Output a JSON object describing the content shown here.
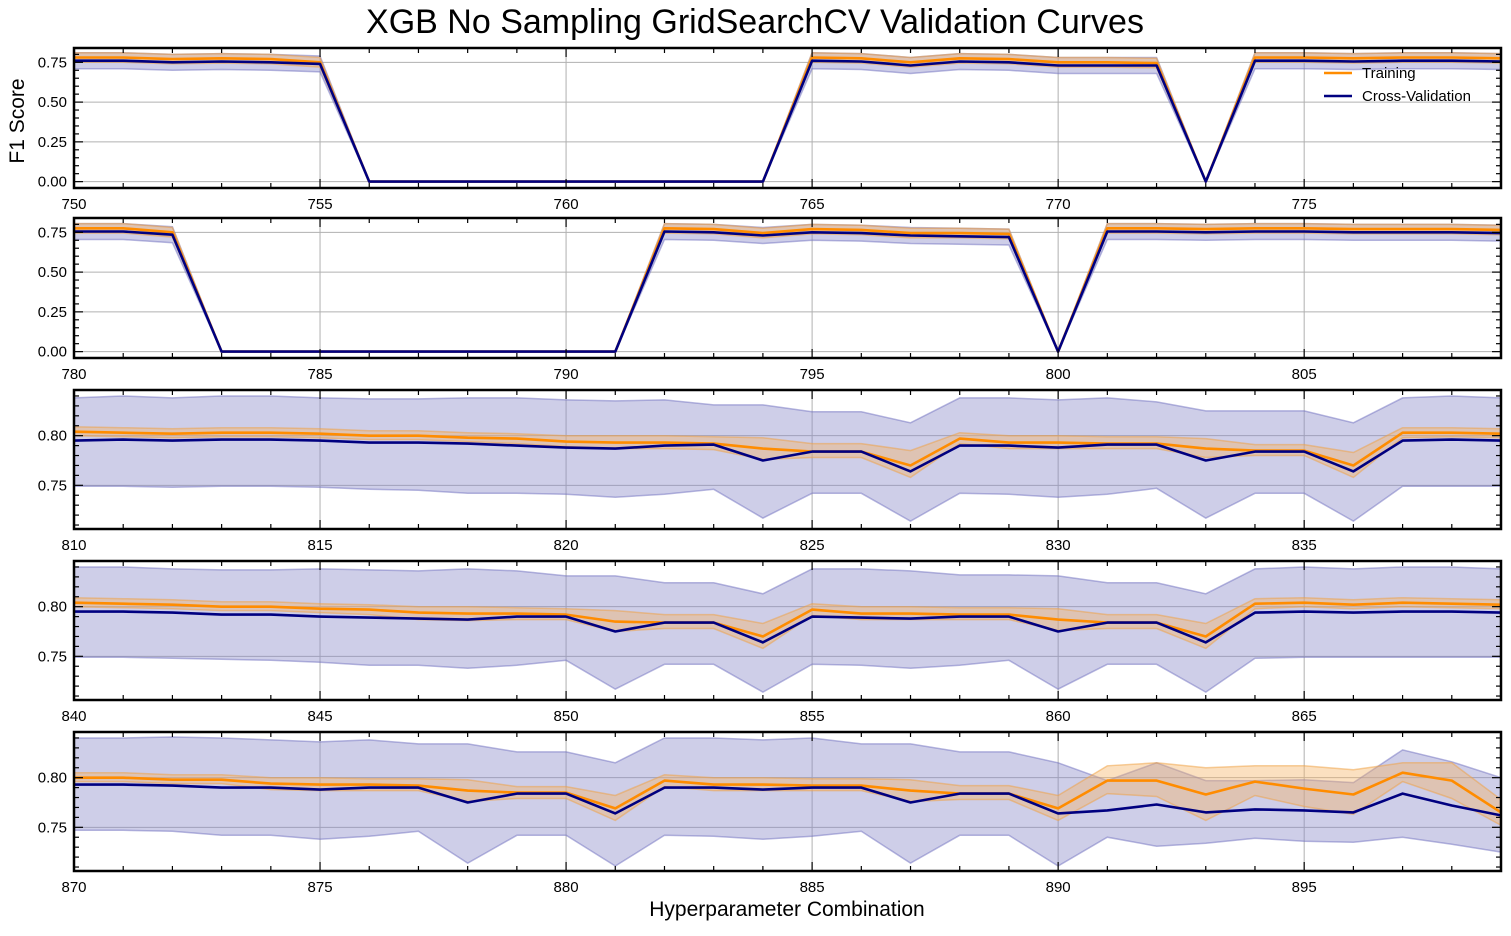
{
  "figure": {
    "title": "XGB No Sampling GridSearchCV Validation Curves",
    "xlabel": "Hyperparameter Combination",
    "ylabel": "F1 Score",
    "legend": {
      "placement": "top-right",
      "entries": [
        "Training",
        "Cross-Validation"
      ]
    },
    "colors": {
      "training": "#ff8c00",
      "cross_validation": "#000080",
      "cv_band": "#8a8ac8",
      "train_band": "#f5b46a",
      "grid": "#b0b0b0"
    }
  },
  "chart_data": [
    {
      "type": "line",
      "title": "",
      "xlabel": "",
      "ylabel": "F1 Score",
      "xlim": [
        750,
        779
      ],
      "ylim": [
        -0.04,
        0.84
      ],
      "xticks": [
        750,
        755,
        760,
        765,
        770,
        775
      ],
      "yticks": [
        0.0,
        0.25,
        0.5,
        0.75
      ],
      "ytick_labels": [
        "0.00",
        "0.25",
        "0.50",
        "0.75"
      ],
      "grid": true,
      "legend": "top-right",
      "x": [
        750,
        751,
        752,
        753,
        754,
        755,
        756,
        757,
        758,
        759,
        760,
        761,
        762,
        763,
        764,
        765,
        766,
        767,
        768,
        769,
        770,
        771,
        772,
        773,
        774,
        775,
        776,
        777,
        778,
        779
      ],
      "series": [
        {
          "name": "Training",
          "values": [
            0.78,
            0.78,
            0.77,
            0.775,
            0.77,
            0.75,
            0,
            0,
            0,
            0,
            0,
            0,
            0,
            0,
            0,
            0.78,
            0.775,
            0.75,
            0.775,
            0.77,
            0.75,
            0.75,
            0.745,
            0,
            0.78,
            0.78,
            0.775,
            0.78,
            0.78,
            0.775
          ],
          "band": 0.03
        },
        {
          "name": "Cross-Validation",
          "values": [
            0.76,
            0.76,
            0.75,
            0.755,
            0.75,
            0.74,
            0,
            0,
            0,
            0,
            0,
            0,
            0,
            0,
            0,
            0.76,
            0.755,
            0.73,
            0.755,
            0.75,
            0.73,
            0.73,
            0.73,
            0,
            0.76,
            0.76,
            0.755,
            0.76,
            0.76,
            0.755
          ],
          "band": 0.05
        }
      ]
    },
    {
      "type": "line",
      "title": "",
      "xlabel": "",
      "ylabel": "",
      "xlim": [
        780,
        809
      ],
      "ylim": [
        -0.04,
        0.84
      ],
      "xticks": [
        780,
        785,
        790,
        795,
        800,
        805
      ],
      "yticks": [
        0.0,
        0.25,
        0.5,
        0.75
      ],
      "ytick_labels": [
        "0.00",
        "0.25",
        "0.50",
        "0.75"
      ],
      "grid": true,
      "x": [
        780,
        781,
        782,
        783,
        784,
        785,
        786,
        787,
        788,
        789,
        790,
        791,
        792,
        793,
        794,
        795,
        796,
        797,
        798,
        799,
        800,
        801,
        802,
        803,
        804,
        805,
        806,
        807,
        808,
        809
      ],
      "series": [
        {
          "name": "Training",
          "values": [
            0.775,
            0.775,
            0.75,
            0,
            0,
            0,
            0,
            0,
            0,
            0,
            0,
            0,
            0.775,
            0.77,
            0.745,
            0.77,
            0.765,
            0.745,
            0.745,
            0.74,
            0,
            0.775,
            0.775,
            0.77,
            0.775,
            0.775,
            0.77,
            0.77,
            0.77,
            0.765
          ],
          "band": 0.03
        },
        {
          "name": "Cross-Validation",
          "values": [
            0.755,
            0.755,
            0.735,
            0,
            0,
            0,
            0,
            0,
            0,
            0,
            0,
            0,
            0.755,
            0.75,
            0.73,
            0.75,
            0.745,
            0.73,
            0.725,
            0.72,
            0,
            0.755,
            0.755,
            0.75,
            0.755,
            0.755,
            0.75,
            0.75,
            0.75,
            0.745
          ],
          "band": 0.05
        }
      ]
    },
    {
      "type": "line",
      "title": "",
      "xlabel": "",
      "ylabel": "",
      "xlim": [
        810,
        839
      ],
      "ylim": [
        0.706,
        0.846
      ],
      "xticks": [
        810,
        815,
        820,
        825,
        830,
        835
      ],
      "yticks": [
        0.75,
        0.8
      ],
      "ytick_labels": [
        "0.75",
        "0.80"
      ],
      "grid": true,
      "x": [
        810,
        811,
        812,
        813,
        814,
        815,
        816,
        817,
        818,
        819,
        820,
        821,
        822,
        823,
        824,
        825,
        826,
        827,
        828,
        829,
        830,
        831,
        832,
        833,
        834,
        835,
        836,
        837,
        838,
        839
      ],
      "series": [
        {
          "name": "Training",
          "values": [
            0.804,
            0.803,
            0.802,
            0.803,
            0.803,
            0.802,
            0.8,
            0.8,
            0.798,
            0.797,
            0.794,
            0.793,
            0.793,
            0.792,
            0.787,
            0.784,
            0.784,
            0.77,
            0.797,
            0.793,
            0.793,
            0.792,
            0.792,
            0.787,
            0.785,
            0.785,
            0.77,
            0.803,
            0.803,
            0.802
          ],
          "band_lower": [
            0.8,
            0.799,
            0.798,
            0.799,
            0.799,
            0.798,
            0.796,
            0.796,
            0.794,
            0.792,
            0.789,
            0.787,
            0.787,
            0.786,
            0.776,
            0.778,
            0.778,
            0.758,
            0.792,
            0.787,
            0.787,
            0.787,
            0.787,
            0.778,
            0.78,
            0.78,
            0.758,
            0.798,
            0.799,
            0.798
          ],
          "band_upper": [
            0.809,
            0.808,
            0.807,
            0.808,
            0.808,
            0.807,
            0.805,
            0.805,
            0.803,
            0.802,
            0.8,
            0.8,
            0.8,
            0.799,
            0.798,
            0.792,
            0.792,
            0.785,
            0.803,
            0.8,
            0.8,
            0.799,
            0.799,
            0.797,
            0.791,
            0.791,
            0.783,
            0.808,
            0.808,
            0.807
          ]
        },
        {
          "name": "Cross-Validation",
          "values": [
            0.795,
            0.796,
            0.795,
            0.796,
            0.796,
            0.795,
            0.793,
            0.793,
            0.792,
            0.79,
            0.788,
            0.787,
            0.79,
            0.791,
            0.775,
            0.784,
            0.784,
            0.764,
            0.79,
            0.79,
            0.788,
            0.791,
            0.791,
            0.775,
            0.784,
            0.784,
            0.764,
            0.795,
            0.796,
            0.795
          ],
          "band_lower": [
            0.749,
            0.749,
            0.748,
            0.749,
            0.749,
            0.748,
            0.746,
            0.745,
            0.742,
            0.742,
            0.741,
            0.738,
            0.741,
            0.746,
            0.717,
            0.742,
            0.742,
            0.714,
            0.742,
            0.741,
            0.738,
            0.741,
            0.747,
            0.717,
            0.742,
            0.742,
            0.714,
            0.749,
            0.749,
            0.749
          ],
          "band_upper": [
            0.838,
            0.84,
            0.838,
            0.84,
            0.84,
            0.838,
            0.837,
            0.837,
            0.838,
            0.838,
            0.836,
            0.835,
            0.836,
            0.831,
            0.831,
            0.824,
            0.824,
            0.813,
            0.838,
            0.838,
            0.836,
            0.838,
            0.834,
            0.825,
            0.825,
            0.825,
            0.813,
            0.838,
            0.84,
            0.838
          ]
        }
      ]
    },
    {
      "type": "line",
      "title": "",
      "xlabel": "",
      "ylabel": "",
      "xlim": [
        840,
        869
      ],
      "ylim": [
        0.706,
        0.846
      ],
      "xticks": [
        840,
        845,
        850,
        855,
        860,
        865
      ],
      "yticks": [
        0.75,
        0.8
      ],
      "ytick_labels": [
        "0.75",
        "0.80"
      ],
      "grid": true,
      "x": [
        840,
        841,
        842,
        843,
        844,
        845,
        846,
        847,
        848,
        849,
        850,
        851,
        852,
        853,
        854,
        855,
        856,
        857,
        858,
        859,
        860,
        861,
        862,
        863,
        864,
        865,
        866,
        867,
        868,
        869
      ],
      "series": [
        {
          "name": "Training",
          "values": [
            0.804,
            0.803,
            0.802,
            0.8,
            0.8,
            0.798,
            0.797,
            0.794,
            0.793,
            0.793,
            0.792,
            0.785,
            0.784,
            0.784,
            0.77,
            0.797,
            0.793,
            0.793,
            0.792,
            0.792,
            0.787,
            0.784,
            0.784,
            0.77,
            0.803,
            0.804,
            0.802,
            0.804,
            0.803,
            0.802
          ],
          "band_lower": [
            0.8,
            0.799,
            0.798,
            0.796,
            0.796,
            0.794,
            0.792,
            0.787,
            0.786,
            0.787,
            0.787,
            0.775,
            0.778,
            0.778,
            0.758,
            0.791,
            0.787,
            0.787,
            0.787,
            0.787,
            0.776,
            0.778,
            0.778,
            0.758,
            0.798,
            0.8,
            0.798,
            0.8,
            0.799,
            0.798
          ],
          "band_upper": [
            0.809,
            0.808,
            0.807,
            0.805,
            0.805,
            0.803,
            0.802,
            0.8,
            0.8,
            0.799,
            0.798,
            0.796,
            0.792,
            0.792,
            0.783,
            0.803,
            0.8,
            0.8,
            0.799,
            0.799,
            0.798,
            0.792,
            0.792,
            0.783,
            0.808,
            0.809,
            0.807,
            0.809,
            0.808,
            0.807
          ]
        },
        {
          "name": "Cross-Validation",
          "values": [
            0.795,
            0.795,
            0.794,
            0.792,
            0.792,
            0.79,
            0.789,
            0.788,
            0.787,
            0.79,
            0.79,
            0.775,
            0.784,
            0.784,
            0.764,
            0.79,
            0.789,
            0.788,
            0.79,
            0.79,
            0.775,
            0.784,
            0.784,
            0.764,
            0.794,
            0.795,
            0.794,
            0.795,
            0.795,
            0.794
          ],
          "band_lower": [
            0.749,
            0.749,
            0.748,
            0.747,
            0.746,
            0.744,
            0.741,
            0.741,
            0.738,
            0.741,
            0.746,
            0.717,
            0.742,
            0.742,
            0.714,
            0.742,
            0.741,
            0.738,
            0.741,
            0.746,
            0.717,
            0.742,
            0.742,
            0.714,
            0.748,
            0.749,
            0.749,
            0.749,
            0.749,
            0.749
          ],
          "band_upper": [
            0.84,
            0.84,
            0.838,
            0.837,
            0.837,
            0.838,
            0.837,
            0.836,
            0.838,
            0.836,
            0.831,
            0.831,
            0.824,
            0.824,
            0.813,
            0.838,
            0.838,
            0.836,
            0.832,
            0.832,
            0.831,
            0.824,
            0.824,
            0.813,
            0.838,
            0.84,
            0.838,
            0.84,
            0.84,
            0.838
          ]
        }
      ]
    },
    {
      "type": "line",
      "title": "",
      "xlabel": "Hyperparameter Combination",
      "ylabel": "",
      "xlim": [
        870,
        899
      ],
      "ylim": [
        0.706,
        0.846
      ],
      "xticks": [
        870,
        875,
        880,
        885,
        890,
        895
      ],
      "yticks": [
        0.75,
        0.8
      ],
      "ytick_labels": [
        "0.75",
        "0.80"
      ],
      "grid": true,
      "x": [
        870,
        871,
        872,
        873,
        874,
        875,
        876,
        877,
        878,
        879,
        880,
        881,
        882,
        883,
        884,
        885,
        886,
        887,
        888,
        889,
        890,
        891,
        892,
        893,
        894,
        895,
        896,
        897,
        898,
        899
      ],
      "series": [
        {
          "name": "Training",
          "values": [
            0.8,
            0.8,
            0.798,
            0.798,
            0.794,
            0.793,
            0.793,
            0.792,
            0.787,
            0.785,
            0.785,
            0.769,
            0.797,
            0.793,
            0.793,
            0.792,
            0.792,
            0.787,
            0.784,
            0.784,
            0.769,
            0.797,
            0.797,
            0.783,
            0.796,
            0.789,
            0.783,
            0.805,
            0.797,
            0.765
          ],
          "band_lower": [
            0.796,
            0.796,
            0.794,
            0.794,
            0.788,
            0.787,
            0.787,
            0.787,
            0.776,
            0.779,
            0.779,
            0.757,
            0.791,
            0.787,
            0.787,
            0.787,
            0.787,
            0.776,
            0.778,
            0.778,
            0.757,
            0.784,
            0.781,
            0.757,
            0.782,
            0.771,
            0.763,
            0.796,
            0.779,
            0.752
          ],
          "band_upper": [
            0.805,
            0.805,
            0.803,
            0.803,
            0.8,
            0.8,
            0.799,
            0.799,
            0.798,
            0.791,
            0.791,
            0.782,
            0.803,
            0.8,
            0.8,
            0.799,
            0.799,
            0.798,
            0.792,
            0.792,
            0.782,
            0.812,
            0.815,
            0.81,
            0.812,
            0.812,
            0.808,
            0.815,
            0.815,
            0.778
          ]
        },
        {
          "name": "Cross-Validation",
          "values": [
            0.793,
            0.793,
            0.792,
            0.79,
            0.79,
            0.788,
            0.79,
            0.79,
            0.775,
            0.784,
            0.784,
            0.764,
            0.79,
            0.79,
            0.788,
            0.79,
            0.79,
            0.775,
            0.784,
            0.784,
            0.764,
            0.767,
            0.773,
            0.765,
            0.768,
            0.767,
            0.765,
            0.784,
            0.772,
            0.762
          ],
          "band_lower": [
            0.747,
            0.747,
            0.746,
            0.742,
            0.742,
            0.738,
            0.741,
            0.746,
            0.714,
            0.742,
            0.742,
            0.711,
            0.742,
            0.741,
            0.738,
            0.741,
            0.746,
            0.714,
            0.742,
            0.742,
            0.711,
            0.74,
            0.731,
            0.734,
            0.739,
            0.736,
            0.735,
            0.74,
            0.733,
            0.725
          ],
          "band_upper": [
            0.84,
            0.84,
            0.841,
            0.84,
            0.838,
            0.836,
            0.838,
            0.834,
            0.834,
            0.826,
            0.826,
            0.815,
            0.84,
            0.84,
            0.838,
            0.84,
            0.834,
            0.834,
            0.826,
            0.826,
            0.815,
            0.797,
            0.815,
            0.797,
            0.797,
            0.798,
            0.795,
            0.828,
            0.816,
            0.8
          ]
        }
      ]
    }
  ]
}
